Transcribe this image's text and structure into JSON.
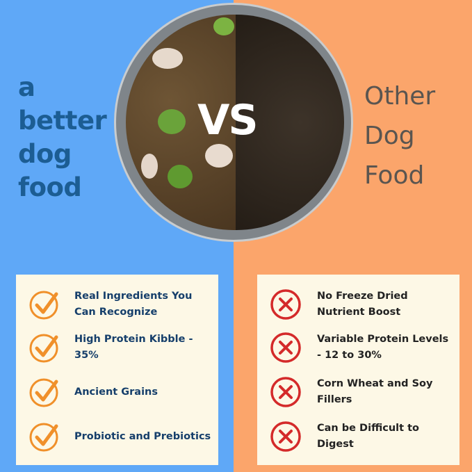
{
  "brand": {
    "lines": [
      "a",
      "better",
      "dog",
      "food"
    ],
    "color": "#1c5d93"
  },
  "competitor": {
    "lines": [
      "Other",
      "Dog",
      "Food"
    ]
  },
  "center_label": "VS",
  "colors": {
    "left_bg": "#5fa8f7",
    "right_bg": "#fba56b",
    "check": "#f0902a",
    "cross": "#d42a2a"
  },
  "pros": [
    {
      "icon": "check-circle-icon",
      "text": "Real Ingredients You Can Recognize"
    },
    {
      "icon": "check-circle-icon",
      "text": "High Protein Kibble - 35%"
    },
    {
      "icon": "check-circle-icon",
      "text": "Ancient Grains"
    },
    {
      "icon": "check-circle-icon",
      "text": "Probiotic and Prebiotics"
    }
  ],
  "cons": [
    {
      "icon": "x-circle-icon",
      "text": "No Freeze Dried Nutrient Boost"
    },
    {
      "icon": "x-circle-icon",
      "text": "Variable Protein Levels - 12 to 30%"
    },
    {
      "icon": "x-circle-icon",
      "text": "Corn Wheat and Soy Fillers"
    },
    {
      "icon": "x-circle-icon",
      "text": "Can be Difficult to Digest"
    }
  ]
}
